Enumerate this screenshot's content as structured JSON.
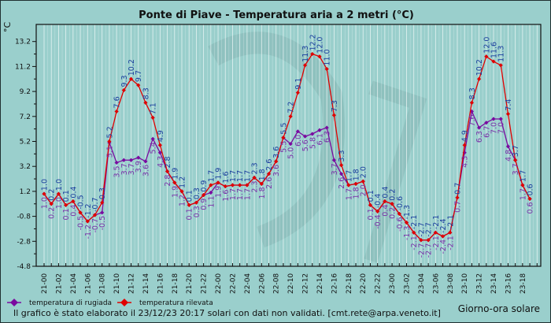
{
  "chart_data": {
    "type": "line",
    "title": "Ponte di Piave - Temperatura aria a 2 metri (°C)",
    "ylabel": "°C",
    "xlabel": "Giorno-ora solare",
    "ylim": [
      -4.8,
      14.5
    ],
    "yticks": [
      "13.2",
      "11.2",
      "9.2",
      "7.2",
      "5.2",
      "3.2",
      "1.2",
      "-0.8",
      "-2.8",
      "-4.8"
    ],
    "ytick_values": [
      13.2,
      11.2,
      9.2,
      7.2,
      5.2,
      3.2,
      1.2,
      -0.8,
      -2.8,
      -4.8
    ],
    "xticks": [
      "21-00",
      "21-02",
      "21-04",
      "21-06",
      "21-08",
      "21-10",
      "21-12",
      "21-14",
      "21-16",
      "21-18",
      "21-20",
      "21-22",
      "22-00",
      "22-02",
      "22-04",
      "22-06",
      "22-08",
      "22-10",
      "22-12",
      "22-14",
      "22-16",
      "22-18",
      "22-20",
      "22-22",
      "23-00",
      "23-02",
      "23-04",
      "23-06",
      "23-08",
      "23-10",
      "23-12",
      "23-14",
      "23-16",
      "23-18"
    ],
    "x_hours_from_start": "hourly, 21-00 to 23-19",
    "grid": true,
    "series": [
      {
        "name": "temperatura rilevata",
        "color": "#e00000",
        "label_color": "#1c3f9e",
        "values": [
          1.0,
          0.2,
          1.0,
          0.1,
          0.4,
          -0.5,
          -1.2,
          -0.7,
          0.3,
          5.2,
          7.6,
          9.3,
          10.2,
          9.7,
          8.3,
          7.1,
          4.9,
          2.8,
          1.9,
          1.2,
          0.1,
          0.3,
          0.9,
          1.7,
          1.9,
          1.6,
          1.7,
          1.7,
          1.7,
          2.3,
          1.8,
          2.6,
          3.6,
          5.5,
          7.2,
          9.1,
          11.3,
          12.2,
          12.0,
          11.0,
          7.3,
          3.3,
          1.7,
          1.8,
          2.0,
          0.1,
          -0.4,
          0.4,
          0.2,
          -0.6,
          -1.3,
          -2.1,
          -2.7,
          -2.7,
          -2.1,
          -2.4,
          -2.1,
          0.7,
          4.9,
          8.3,
          10.2,
          12.0,
          11.6,
          11.3,
          7.4,
          3.7,
          1.7,
          0.6
        ]
      },
      {
        "name": "temperatura di rugiada",
        "color": "#7a0aa0",
        "label_color": "#7a30a8",
        "values": [
          1.0,
          0.2,
          1.0,
          0.1,
          0.4,
          -0.5,
          -1.2,
          -0.7,
          -0.5,
          5.1,
          3.5,
          3.7,
          3.7,
          3.9,
          3.6,
          5.4,
          4.3,
          2.8,
          1.9,
          1.2,
          0.1,
          0.3,
          0.9,
          1.1,
          1.9,
          1.6,
          1.7,
          1.7,
          1.7,
          2.3,
          1.8,
          2.6,
          3.6,
          5.5,
          5.0,
          6.0,
          5.6,
          5.8,
          6.1,
          6.3,
          3.7,
          2.6,
          1.7,
          1.8,
          2.0,
          0.1,
          -0.4,
          0.4,
          0.2,
          -0.6,
          -1.3,
          -2.1,
          -2.7,
          -2.7,
          -2.1,
          -2.4,
          -2.1,
          0.7,
          4.3,
          7.6,
          6.3,
          6.7,
          7.0,
          7.0,
          4.8,
          3.7,
          1.7,
          0.6
        ]
      }
    ],
    "legend": [
      "temperatura di rugiada",
      "temperatura rilevata"
    ],
    "legend_position": "bottom-left"
  },
  "footer": "Il grafico è stato elaborato il 23/12/23 20:17 solari con dati non validati. [cmt.rete@arpa.veneto.it]",
  "colors": {
    "background": "#9acfcc",
    "grid": "#ffffff"
  }
}
